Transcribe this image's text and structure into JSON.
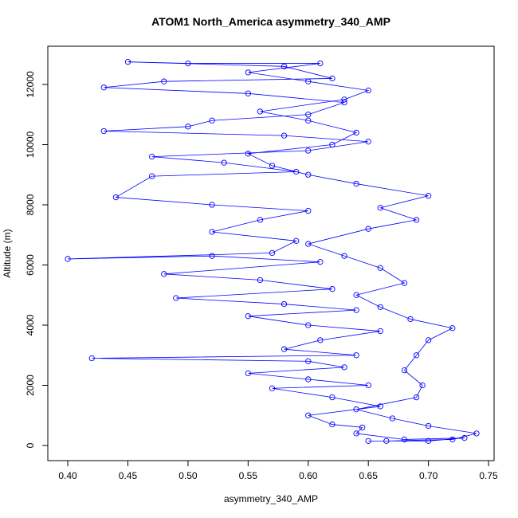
{
  "chart_data": {
    "type": "scatter",
    "lines": true,
    "title": "ATOM1 North_America asymmetry_340_AMP",
    "x_label": "asymmetry_340_AMP",
    "y_label": "Altitude (m)",
    "series": [
      {
        "color": "#0000ff",
        "x": [
          0.665,
          0.72,
          0.74,
          0.7,
          0.67,
          0.64,
          0.69,
          0.695,
          0.68,
          0.69,
          0.7,
          0.72,
          0.685,
          0.66,
          0.64,
          0.68,
          0.66,
          0.63,
          0.6,
          0.65,
          0.69,
          0.66,
          0.7,
          0.64,
          0.6,
          0.57,
          0.55,
          0.62,
          0.64,
          0.6,
          0.56,
          0.63,
          0.65,
          0.6,
          0.55,
          0.61,
          0.5,
          0.45,
          0.58,
          0.62,
          0.48,
          0.43,
          0.55,
          0.63,
          0.6,
          0.52,
          0.5,
          0.43,
          0.58,
          0.65,
          0.6,
          0.47,
          0.53,
          0.59,
          0.47,
          0.44,
          0.52,
          0.6,
          0.56,
          0.52,
          0.59,
          0.57,
          0.4,
          0.52,
          0.61,
          0.48,
          0.56,
          0.62,
          0.49,
          0.58,
          0.64,
          0.55,
          0.6,
          0.66,
          0.61,
          0.58,
          0.64,
          0.42,
          0.6,
          0.63,
          0.55,
          0.6,
          0.65,
          0.57,
          0.62,
          0.66,
          0.6,
          0.62,
          0.645,
          0.64,
          0.68,
          0.73,
          0.7,
          0.65
        ],
        "y": [
          150,
          200,
          400,
          650,
          900,
          1200,
          1600,
          2000,
          2500,
          3000,
          3500,
          3900,
          4200,
          4600,
          5000,
          5400,
          5900,
          6300,
          6700,
          7200,
          7500,
          7900,
          8300,
          8700,
          9000,
          9300,
          9700,
          10000,
          10400,
          10800,
          11100,
          11500,
          11800,
          12100,
          12400,
          12700,
          12700,
          12750,
          12600,
          12200,
          12100,
          11900,
          11700,
          11400,
          11000,
          10800,
          10600,
          10450,
          10300,
          10100,
          9800,
          9600,
          9400,
          9100,
          8950,
          8250,
          8000,
          7800,
          7500,
          7100,
          6800,
          6400,
          6200,
          6300,
          6100,
          5700,
          5500,
          5200,
          4900,
          4700,
          4500,
          4300,
          4000,
          3800,
          3500,
          3200,
          3000,
          2900,
          2800,
          2600,
          2400,
          2200,
          2000,
          1900,
          1600,
          1300,
          1000,
          700,
          600,
          400,
          200,
          250,
          150,
          150
        ]
      }
    ],
    "xlim": [
      0.3834,
      0.7546
    ],
    "xticks": [
      {
        "value": 0.4,
        "label": "0.40"
      },
      0.45,
      {
        "value": 0.5,
        "label": "0.50"
      },
      0.55,
      {
        "value": 0.6,
        "label": "0.60"
      },
      0.65,
      {
        "value": 0.7,
        "label": "0.70"
      },
      0.75
    ],
    "ylim": [
      -503,
      13271
    ],
    "yticks": [
      0,
      2000,
      4000,
      6000,
      8000,
      10000,
      12000
    ]
  }
}
